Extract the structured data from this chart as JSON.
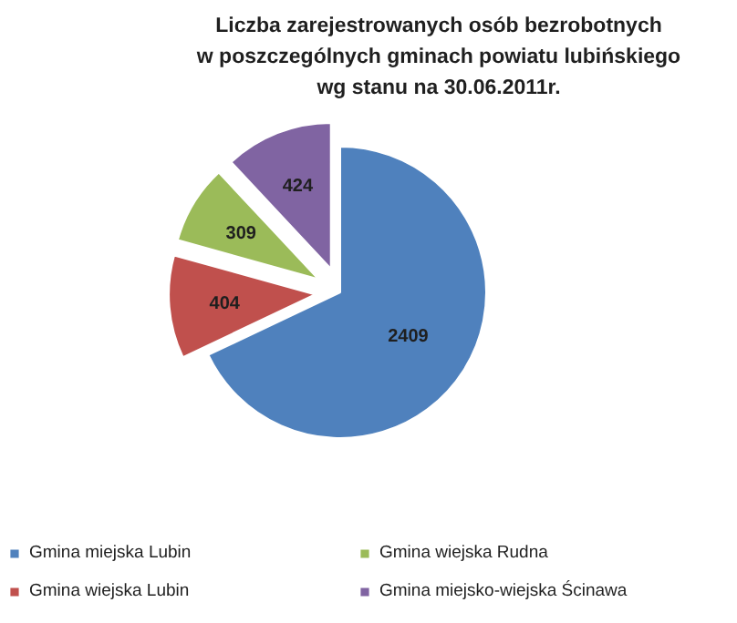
{
  "chart_data": {
    "type": "pie",
    "title": "Liczba zarejestrowanych osób bezrobotnych\nw poszczególnych gminach powiatu lubińskiego\nwg stanu na 30.06.2011r.",
    "categories": [
      "Gmina miejska Lubin",
      "Gmina wiejska Lubin",
      "Gmina wiejska Rudna",
      "Gmina miejsko-wiejska Ścinawa"
    ],
    "values": [
      2409,
      404,
      309,
      424
    ],
    "colors": [
      "#4f81bd",
      "#c0504d",
      "#9bbb59",
      "#8064a2"
    ],
    "data_labels": true,
    "legend": "bottom"
  }
}
